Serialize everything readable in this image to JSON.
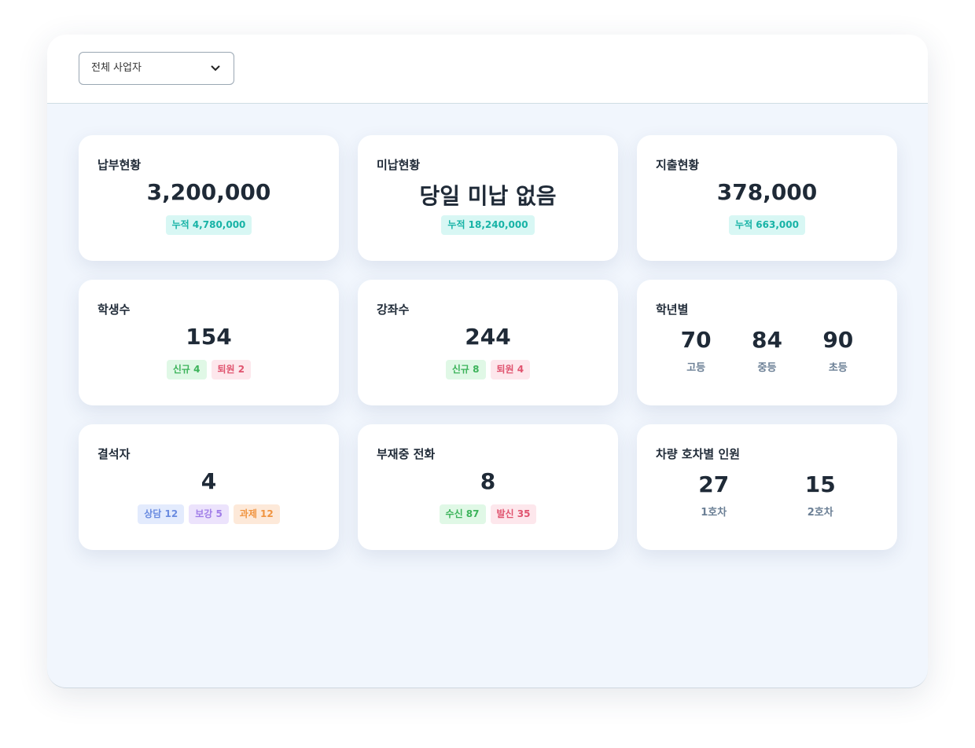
{
  "filter": "전체 사업자",
  "cards": [
    {
      "label": "납부현황",
      "value": "3,200,000",
      "badges": [
        {
          "text": "누적 4,780,000",
          "tone": "teal"
        }
      ]
    },
    {
      "label": "미납현황",
      "value": "당일 미납 없음",
      "badges": [
        {
          "text": "누적 18,240,000",
          "tone": "teal"
        }
      ]
    },
    {
      "label": "지출현황",
      "value": "378,000",
      "badges": [
        {
          "text": "누적 663,000",
          "tone": "teal"
        }
      ]
    },
    {
      "label": "학생수",
      "value": "154",
      "badges": [
        {
          "text": "신규 4",
          "tone": "green"
        },
        {
          "text": "퇴원 2",
          "tone": "red"
        }
      ]
    },
    {
      "label": "강좌수",
      "value": "244",
      "badges": [
        {
          "text": "신규 8",
          "tone": "green"
        },
        {
          "text": "퇴원 4",
          "tone": "red"
        }
      ]
    },
    {
      "label": "학년별",
      "items": [
        {
          "value": "70",
          "name": "고등"
        },
        {
          "value": "84",
          "name": "중등"
        },
        {
          "value": "90",
          "name": "초등"
        }
      ]
    },
    {
      "label": "결석자",
      "value": "4",
      "badges": [
        {
          "text": "상담 12",
          "tone": "blue"
        },
        {
          "text": "보강 5",
          "tone": "purple"
        },
        {
          "text": "과제 12",
          "tone": "orange"
        }
      ]
    },
    {
      "label": "부재중 전화",
      "value": "8",
      "badges": [
        {
          "text": "수신 87",
          "tone": "green"
        },
        {
          "text": "발신 35",
          "tone": "red"
        }
      ]
    },
    {
      "label": "차량 호차별 인원",
      "items": [
        {
          "value": "27",
          "name": "1호차"
        },
        {
          "value": "15",
          "name": "2호차"
        }
      ]
    }
  ]
}
